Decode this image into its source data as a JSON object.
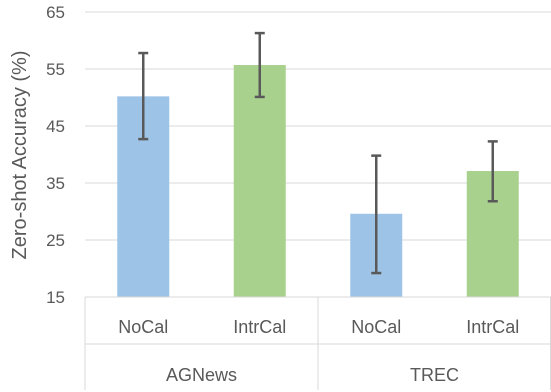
{
  "chart_data": {
    "type": "bar",
    "ylabel": "Zero-shot Accuracy (%)",
    "ylim": [
      15,
      65
    ],
    "yticks": [
      15,
      25,
      35,
      45,
      55,
      65
    ],
    "grid": true,
    "groups": [
      "AGNews",
      "TREC"
    ],
    "categories": [
      "NoCal",
      "IntrCal",
      "NoCal",
      "IntrCal"
    ],
    "values": [
      50.2,
      55.7,
      29.6,
      37.1
    ],
    "error_low": [
      42.7,
      50.1,
      19.2,
      31.8
    ],
    "error_high": [
      57.8,
      61.3,
      39.8,
      42.3
    ],
    "colors": [
      "#9dc3e6",
      "#a9d18e",
      "#9dc3e6",
      "#a9d18e"
    ],
    "error_bar_color": "#595959"
  }
}
